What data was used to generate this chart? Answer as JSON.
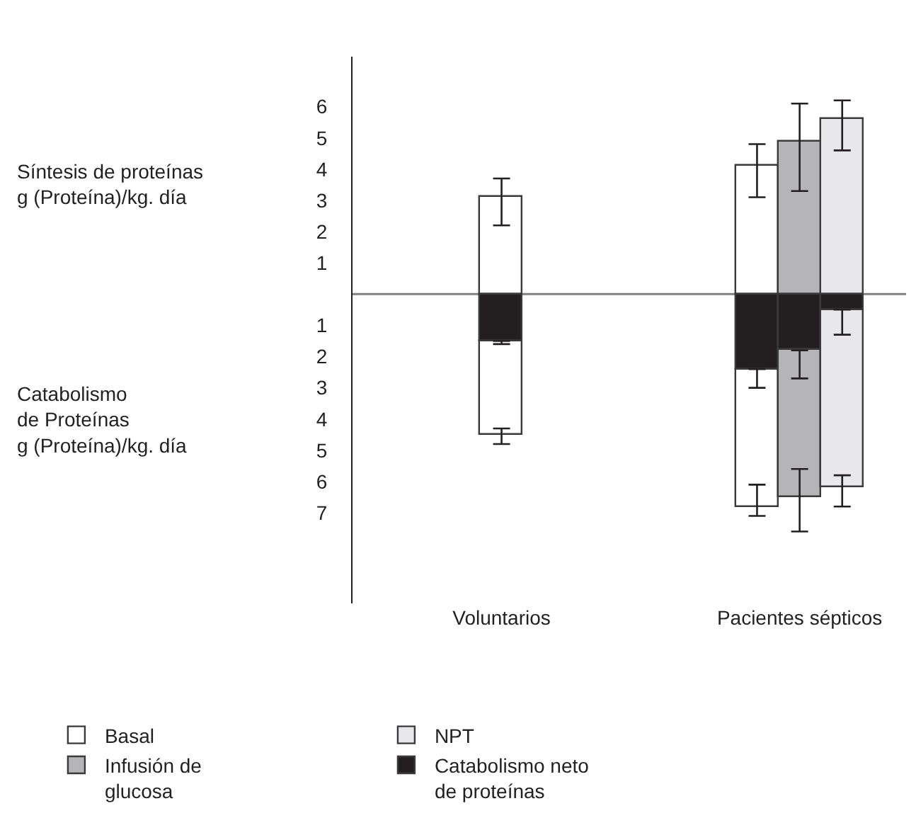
{
  "chart_data": {
    "type": "bar",
    "stacked": true,
    "annotations": [
      "Síntesis de proteínas\ng (Proteína)/kg. día",
      "Catabolismo\nde Proteínas\ng (Proteína)/kg. día"
    ],
    "categories": [
      null,
      null,
      null,
      "Voluntarios",
      null,
      null,
      null,
      null,
      null,
      null,
      "Pacientes sépticos",
      null,
      null
    ],
    "series": [
      {
        "name": "Basal",
        "color": "#ffffff",
        "values": [
          null,
          null,
          null,
          3.1,
          null,
          null,
          null,
          null,
          null,
          4.1,
          null,
          null,
          null
        ],
        "errors": [
          null,
          null,
          null,
          [
            2.2,
            3.7
          ],
          null,
          null,
          null,
          null,
          null,
          [
            3.1,
            4.8
          ],
          null,
          null,
          null
        ]
      },
      {
        "name": "NPT",
        "color": "#e8e8ea",
        "values": [
          null,
          null,
          null,
          null,
          null,
          null,
          null,
          null,
          null,
          null,
          null,
          5.6,
          null
        ],
        "errors": [
          null,
          null,
          null,
          null,
          null,
          null,
          null,
          null,
          null,
          null,
          null,
          [
            4.6,
            6.2
          ],
          null
        ]
      },
      {
        "name": "Infusión de\nglucosa",
        "color": "#b5b5b8",
        "values": [
          null,
          null,
          null,
          null,
          null,
          null,
          null,
          null,
          null,
          null,
          4.9,
          null,
          null
        ],
        "errors": [
          null,
          null,
          null,
          null,
          null,
          null,
          null,
          null,
          null,
          null,
          [
            3.3,
            6.1
          ],
          null,
          null
        ]
      },
      {
        "name": "Catabolismo neto\nde proteínas",
        "color": "#231f20",
        "values": [
          null,
          null,
          null,
          -1.5,
          null,
          null,
          null,
          null,
          null,
          -2.4,
          -1.8,
          -0.5,
          null
        ],
        "errors": [
          null,
          null,
          null,
          [
            -1.6,
            -1.5
          ],
          null,
          null,
          null,
          null,
          null,
          [
            -3.0,
            -2.4
          ],
          [
            -2.7,
            -1.8
          ],
          [
            -1.3,
            -0.5
          ],
          null
        ]
      },
      {
        "color": "#ffffff",
        "values": [
          null,
          null,
          null,
          -3.0,
          null,
          null,
          null,
          null,
          null,
          -4.4,
          null,
          null,
          null
        ],
        "errors": [
          null,
          null,
          null,
          [
            -4.8,
            -4.3
          ],
          null,
          null,
          null,
          null,
          null,
          [
            -7.1,
            -6.1
          ],
          null,
          null,
          null
        ]
      },
      {
        "color": "#b5b5b8",
        "values": [
          null,
          null,
          null,
          null,
          null,
          null,
          null,
          null,
          null,
          null,
          -4.7,
          null,
          null
        ],
        "errors": [
          null,
          null,
          null,
          null,
          null,
          null,
          null,
          null,
          null,
          null,
          [
            -7.6,
            -5.6
          ],
          null,
          null
        ]
      },
      {
        "color": "#e8e8ea",
        "values": [
          null,
          null,
          null,
          null,
          null,
          null,
          null,
          null,
          null,
          null,
          null,
          -5.7,
          null
        ],
        "errors": [
          null,
          null,
          null,
          null,
          null,
          null,
          null,
          null,
          null,
          null,
          null,
          [
            -6.8,
            -5.8
          ],
          null
        ]
      }
    ],
    "ylim": [
      -9.9,
      7.6
    ],
    "yticks": [
      {
        "value": -7,
        "label": "7"
      },
      {
        "value": -6,
        "label": "6"
      },
      {
        "value": -5,
        "label": "5"
      },
      {
        "value": -4,
        "label": "4"
      },
      {
        "value": -3,
        "label": "3"
      },
      {
        "value": -2,
        "label": "2"
      },
      {
        "value": -1,
        "label": "1"
      },
      1,
      2,
      3,
      4,
      5,
      6
    ],
    "ref_lines": [
      {
        "axis": "y",
        "value": 0,
        "color": "#808080"
      }
    ],
    "legend": "bottom"
  }
}
